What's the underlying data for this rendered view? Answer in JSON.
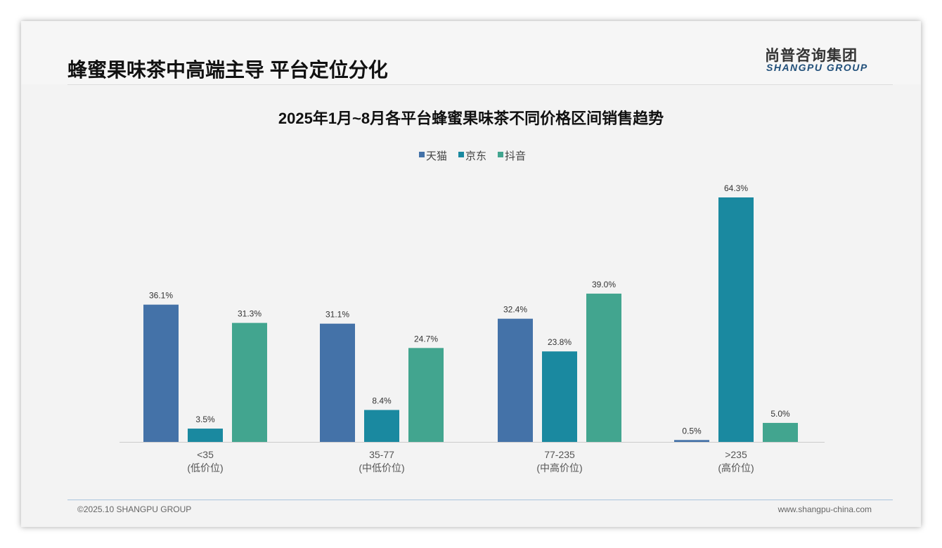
{
  "header": {
    "title": "蜂蜜果味茶中高端主导 平台定位分化",
    "logo_cn": "尚普咨询集团",
    "logo_en": "SHANGPU GROUP"
  },
  "footer": {
    "copyright": "©2025.10 SHANGPU GROUP",
    "url": "www.shangpu-china.com"
  },
  "chart_data": {
    "type": "bar",
    "title": "2025年1月~8月各平台蜂蜜果味茶不同价格区间销售趋势",
    "categories": [
      "<35",
      "35-77",
      "77-235",
      ">235"
    ],
    "category_sublabels": [
      "(低价位)",
      "(中低价位)",
      "(中高价位)",
      "(高价位)"
    ],
    "series": [
      {
        "name": "天猫",
        "color": "#4472a8",
        "values": [
          36.1,
          31.1,
          32.4,
          0.5
        ]
      },
      {
        "name": "京东",
        "color": "#1a89a0",
        "values": [
          3.5,
          8.4,
          23.8,
          64.3
        ]
      },
      {
        "name": "抖音",
        "color": "#42a58f",
        "values": [
          31.3,
          24.7,
          39.0,
          5.0
        ]
      }
    ],
    "unit": "%",
    "legend": "top-center",
    "grid": false,
    "ylim": [
      0,
      70
    ]
  }
}
